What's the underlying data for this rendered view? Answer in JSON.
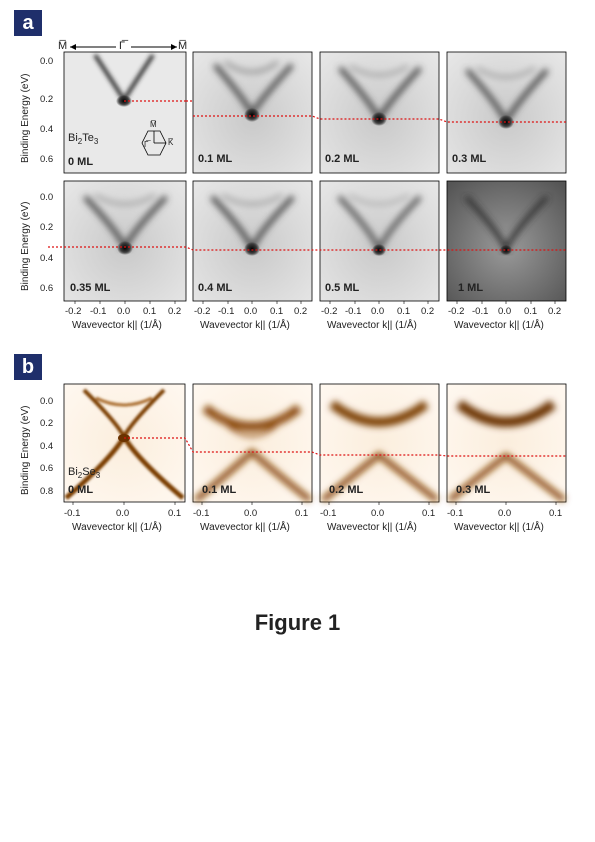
{
  "panels": {
    "a": {
      "label": "a",
      "kpath": {
        "left": "M̅",
        "center": "Γ̅",
        "right": "M̅"
      },
      "ylabel": "Binding Energy (eV)",
      "yticks": [
        "0.0",
        "0.2",
        "0.4",
        "0.6"
      ],
      "xticks": [
        "-0.2",
        "-0.1",
        "0.0",
        "0.1",
        "0.2"
      ],
      "xlabel": "Wavevector k|| (1/Å)",
      "material_main": "Bi",
      "material_sub": "2",
      "material_tail": "Te",
      "material_sub2": "3",
      "bz_labels": {
        "M": "M̅",
        "G": "Γ̅",
        "K": "K̅"
      },
      "thickness": [
        "0 ML",
        "0.1 ML",
        "0.2 ML",
        "0.3 ML",
        "0.35 ML",
        "0.4 ML",
        "0.5 ML",
        "1 ML"
      ]
    },
    "b": {
      "label": "b",
      "ylabel": "Binding Energy (eV)",
      "yticks": [
        "0.0",
        "0.2",
        "0.4",
        "0.6",
        "0.8"
      ],
      "xticks": [
        "-0.1",
        "0.0",
        "0.1"
      ],
      "xlabel": "Wavevector k|| (1/Å)",
      "material_main": "Bi",
      "material_sub": "2",
      "material_tail": "Se",
      "material_sub2": "3",
      "thickness": [
        "0 ML",
        "0.1 ML",
        "0.2 ML",
        "0.3 ML"
      ]
    }
  },
  "caption": "Figure 1",
  "chart_data": [
    {
      "type": "heatmap",
      "title": "",
      "xlabel": "Wavevector k|| (1/Å)",
      "ylabel": "Binding Energy (eV)",
      "xlim": [
        -0.25,
        0.25
      ],
      "ylim": [
        0.7,
        -0.1
      ],
      "panels": [
        "0 ML",
        "0.1 ML",
        "0.2 ML",
        "0.3 ML",
        "0.35 ML",
        "0.4 ML",
        "0.5 ML",
        "1 ML"
      ],
      "dirac_point_eV": [
        0.2,
        0.3,
        0.33,
        0.35,
        0.35,
        0.35,
        0.36,
        0.36
      ],
      "colormap": "#000000"
    },
    {
      "type": "heatmap",
      "title": "",
      "xlabel": "Wavevector k|| (1/Å)",
      "ylabel": "Binding Energy (eV)",
      "xlim": [
        -0.13,
        0.13
      ],
      "ylim": [
        0.85,
        -0.1
      ],
      "panels": [
        "0 ML",
        "0.1 ML",
        "0.2 ML",
        "0.3 ML"
      ],
      "dirac_point_eV": [
        0.29,
        0.4,
        0.42,
        0.43
      ],
      "colormap": "#7a3e06"
    }
  ]
}
